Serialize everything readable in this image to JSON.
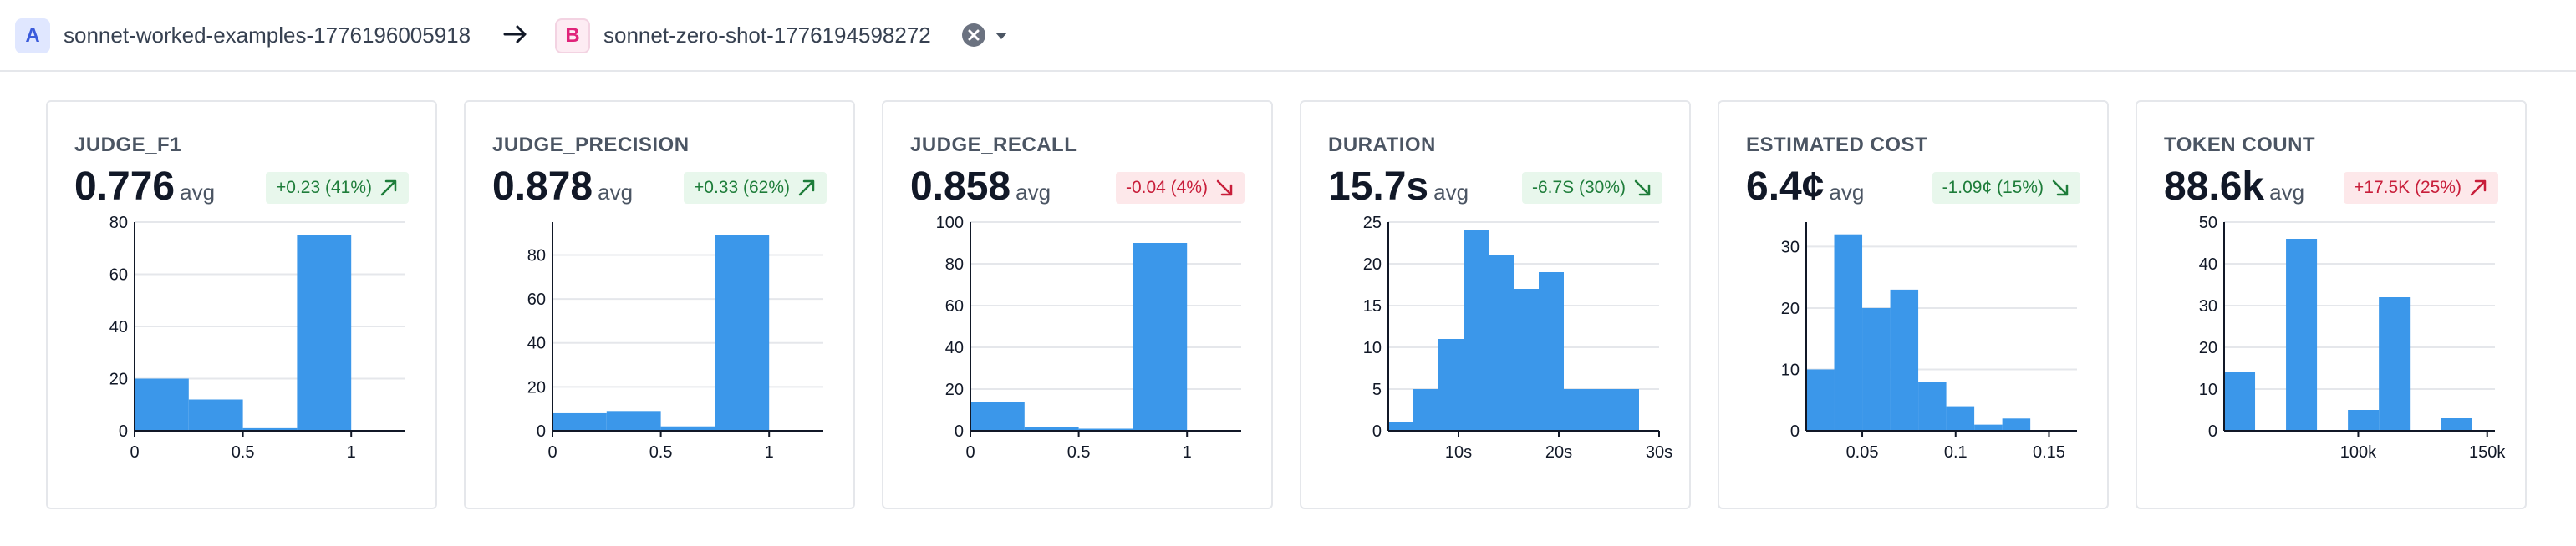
{
  "header": {
    "experiment_a": {
      "badge": "A",
      "name": "sonnet-worked-examples-1776196005918"
    },
    "experiment_b": {
      "badge": "B",
      "name": "sonnet-zero-shot-1776194598272"
    }
  },
  "colors": {
    "bar": "#3b97ea",
    "positive": "#1e7d3a",
    "negative": "#c81e3a"
  },
  "cards": [
    {
      "title": "JUDGE_F1",
      "value": "0.776",
      "avg_label": "avg",
      "delta": "+0.23 (41%)",
      "delta_style": "up",
      "delta_icon": "arrow-up-right-icon",
      "chart_data": {
        "type": "bar",
        "xlim": [
          0,
          1.25
        ],
        "ylim": [
          0,
          80
        ],
        "bins": [
          [
            0,
            0.25,
            20
          ],
          [
            0.25,
            0.5,
            12
          ],
          [
            0.5,
            0.75,
            1
          ],
          [
            0.75,
            1.0,
            75
          ]
        ],
        "xticks": [
          {
            "v": 0,
            "label": "0"
          },
          {
            "v": 0.5,
            "label": "0.5"
          },
          {
            "v": 1,
            "label": "1"
          }
        ],
        "yticks": [
          {
            "v": 0,
            "label": "0"
          },
          {
            "v": 20,
            "label": "20"
          },
          {
            "v": 40,
            "label": "40"
          },
          {
            "v": 60,
            "label": "60"
          },
          {
            "v": 80,
            "label": "80"
          }
        ]
      }
    },
    {
      "title": "JUDGE_PRECISION",
      "value": "0.878",
      "avg_label": "avg",
      "delta": "+0.33 (62%)",
      "delta_style": "up",
      "delta_icon": "arrow-up-right-icon",
      "chart_data": {
        "type": "bar",
        "xlim": [
          0,
          1.25
        ],
        "ylim": [
          0,
          95
        ],
        "bins": [
          [
            0,
            0.25,
            8
          ],
          [
            0.25,
            0.5,
            9
          ],
          [
            0.5,
            0.75,
            2
          ],
          [
            0.75,
            1.0,
            89
          ]
        ],
        "xticks": [
          {
            "v": 0,
            "label": "0"
          },
          {
            "v": 0.5,
            "label": "0.5"
          },
          {
            "v": 1,
            "label": "1"
          }
        ],
        "yticks": [
          {
            "v": 0,
            "label": "0"
          },
          {
            "v": 20,
            "label": "20"
          },
          {
            "v": 40,
            "label": "40"
          },
          {
            "v": 60,
            "label": "60"
          },
          {
            "v": 80,
            "label": "80"
          }
        ]
      }
    },
    {
      "title": "JUDGE_RECALL",
      "value": "0.858",
      "avg_label": "avg",
      "delta": "-0.04 (4%)",
      "delta_style": "down-bad",
      "delta_icon": "arrow-down-right-icon",
      "chart_data": {
        "type": "bar",
        "xlim": [
          0,
          1.25
        ],
        "ylim": [
          0,
          100
        ],
        "bins": [
          [
            0,
            0.25,
            14
          ],
          [
            0.25,
            0.5,
            2
          ],
          [
            0.5,
            0.75,
            1
          ],
          [
            0.75,
            1.0,
            90
          ]
        ],
        "xticks": [
          {
            "v": 0,
            "label": "0"
          },
          {
            "v": 0.5,
            "label": "0.5"
          },
          {
            "v": 1,
            "label": "1"
          }
        ],
        "yticks": [
          {
            "v": 0,
            "label": "0"
          },
          {
            "v": 20,
            "label": "20"
          },
          {
            "v": 40,
            "label": "40"
          },
          {
            "v": 60,
            "label": "60"
          },
          {
            "v": 80,
            "label": "80"
          },
          {
            "v": 100,
            "label": "100"
          }
        ]
      }
    },
    {
      "title": "DURATION",
      "value": "15.7s",
      "avg_label": "avg",
      "delta": "-6.7S (30%)",
      "delta_style": "down-good",
      "delta_icon": "arrow-down-right-icon",
      "chart_data": {
        "type": "bar",
        "xlim": [
          3,
          30
        ],
        "ylim": [
          0,
          25
        ],
        "bins": [
          [
            3,
            5.5,
            1
          ],
          [
            5.5,
            8,
            5
          ],
          [
            8,
            10.5,
            11
          ],
          [
            10.5,
            13,
            24
          ],
          [
            13,
            15.5,
            21
          ],
          [
            15.5,
            18,
            17
          ],
          [
            18,
            20.5,
            19
          ],
          [
            20.5,
            23,
            5
          ],
          [
            23,
            25.5,
            5
          ],
          [
            25.5,
            28,
            5
          ]
        ],
        "xticks": [
          {
            "v": 10,
            "label": "10s"
          },
          {
            "v": 20,
            "label": "20s"
          },
          {
            "v": 30,
            "label": "30s"
          }
        ],
        "yticks": [
          {
            "v": 0,
            "label": "0"
          },
          {
            "v": 5,
            "label": "5"
          },
          {
            "v": 10,
            "label": "10"
          },
          {
            "v": 15,
            "label": "15"
          },
          {
            "v": 20,
            "label": "20"
          },
          {
            "v": 25,
            "label": "25"
          }
        ]
      }
    },
    {
      "title": "ESTIMATED COST",
      "value": "6.4¢",
      "avg_label": "avg",
      "delta": "-1.09¢ (15%)",
      "delta_style": "down-good",
      "delta_icon": "arrow-down-right-icon",
      "chart_data": {
        "type": "bar",
        "xlim": [
          0.02,
          0.165
        ],
        "ylim": [
          0,
          34
        ],
        "bins": [
          [
            0.02,
            0.035,
            10
          ],
          [
            0.035,
            0.05,
            32
          ],
          [
            0.05,
            0.065,
            20
          ],
          [
            0.065,
            0.08,
            23
          ],
          [
            0.08,
            0.095,
            8
          ],
          [
            0.095,
            0.11,
            4
          ],
          [
            0.11,
            0.125,
            1
          ],
          [
            0.125,
            0.14,
            2
          ]
        ],
        "xticks": [
          {
            "v": 0.05,
            "label": "0.05"
          },
          {
            "v": 0.1,
            "label": "0.1"
          },
          {
            "v": 0.15,
            "label": "0.15"
          }
        ],
        "yticks": [
          {
            "v": 0,
            "label": "0"
          },
          {
            "v": 10,
            "label": "10"
          },
          {
            "v": 20,
            "label": "20"
          },
          {
            "v": 30,
            "label": "30"
          }
        ]
      }
    },
    {
      "title": "TOKEN COUNT",
      "value": "88.6k",
      "avg_label": "avg",
      "delta": "+17.5K (25%)",
      "delta_style": "up-bad",
      "delta_icon": "arrow-up-right-icon",
      "chart_data": {
        "type": "bar",
        "xlim": [
          48000,
          153000
        ],
        "ylim": [
          0,
          50
        ],
        "bins": [
          [
            48000,
            60000,
            14
          ],
          [
            60000,
            72000,
            0
          ],
          [
            72000,
            84000,
            46
          ],
          [
            84000,
            96000,
            0
          ],
          [
            96000,
            108000,
            5
          ],
          [
            108000,
            120000,
            32
          ],
          [
            120000,
            132000,
            0
          ],
          [
            132000,
            144000,
            3
          ]
        ],
        "xticks": [
          {
            "v": 100000,
            "label": "100k"
          },
          {
            "v": 150000,
            "label": "150k"
          }
        ],
        "yticks": [
          {
            "v": 0,
            "label": "0"
          },
          {
            "v": 10,
            "label": "10"
          },
          {
            "v": 20,
            "label": "20"
          },
          {
            "v": 30,
            "label": "30"
          },
          {
            "v": 40,
            "label": "40"
          },
          {
            "v": 50,
            "label": "50"
          }
        ]
      }
    }
  ]
}
